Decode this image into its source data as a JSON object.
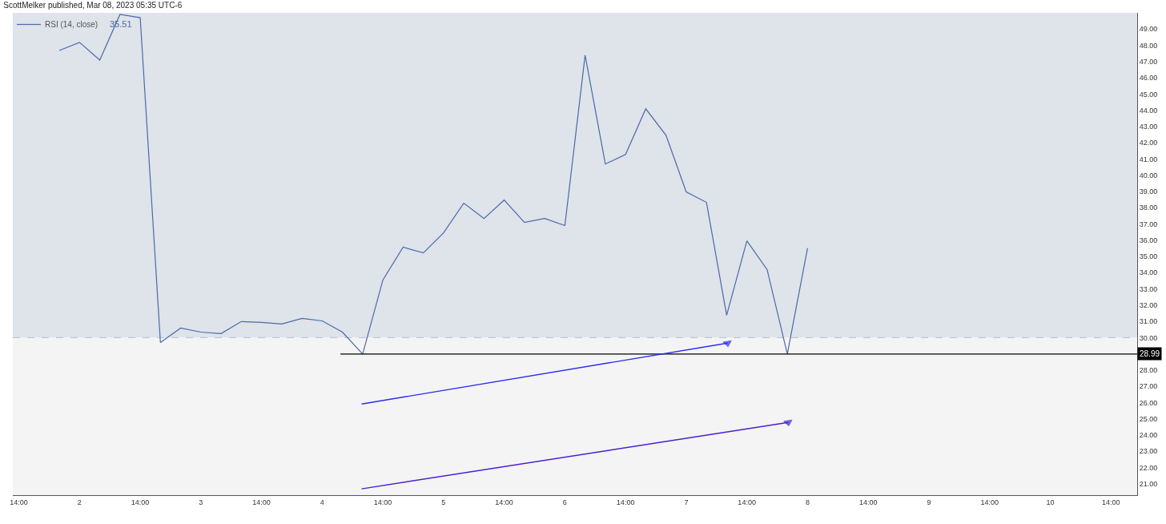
{
  "chart_data": {
    "type": "line",
    "title": "ScottMelker published, Mar 08, 2023 05:35 UTC-6",
    "x": [
      "2023-03-01T22:00",
      "2023-03-02T02:00",
      "2023-03-02T06:00",
      "2023-03-02T10:00",
      "2023-03-02T14:00",
      "2023-03-02T18:00",
      "2023-03-02T22:00",
      "2023-03-03T02:00",
      "2023-03-03T06:00",
      "2023-03-03T10:00",
      "2023-03-03T14:00",
      "2023-03-03T18:00",
      "2023-03-03T22:00",
      "2023-03-04T02:00",
      "2023-03-04T06:00",
      "2023-03-04T10:00",
      "2023-03-04T14:00",
      "2023-03-04T18:00",
      "2023-03-04T22:00",
      "2023-03-05T02:00",
      "2023-03-05T06:00",
      "2023-03-05T10:00",
      "2023-03-05T14:00",
      "2023-03-05T18:00",
      "2023-03-05T22:00",
      "2023-03-06T02:00",
      "2023-03-06T06:00",
      "2023-03-06T10:00",
      "2023-03-06T14:00",
      "2023-03-06T18:00",
      "2023-03-06T22:00",
      "2023-03-07T02:00",
      "2023-03-07T06:00",
      "2023-03-07T10:00",
      "2023-03-07T14:00",
      "2023-03-07T18:00",
      "2023-03-07T22:00",
      "2023-03-08T02:00"
    ],
    "series": [
      {
        "name": "RSI (14, close)",
        "color": "#4a6aa8",
        "values": [
          47.68,
          48.18,
          47.09,
          49.9,
          49.7,
          29.7,
          30.59,
          30.34,
          30.25,
          30.99,
          30.94,
          30.84,
          31.18,
          31.03,
          30.34,
          28.99,
          33.55,
          35.57,
          35.22,
          36.45,
          38.28,
          37.34,
          38.47,
          37.09,
          37.34,
          36.9,
          47.39,
          40.69,
          41.28,
          44.09,
          42.46,
          38.97,
          38.33,
          31.38,
          35.96,
          34.19,
          28.99,
          35.51
        ]
      },
      {
        "type": "line",
        "color": "#000000",
        "x": [
          "2023-03-04T05:36",
          "2023-03-10T19:12"
        ],
        "values": [
          28.99,
          28.99
        ]
      },
      {
        "type": "line",
        "color": "#2b2bf0",
        "marker": "triangle",
        "x": [
          "2023-03-04T09:48",
          "2023-03-07T10:10"
        ],
        "values": [
          25.91,
          29.66
        ]
      },
      {
        "type": "line",
        "color": "#4a1fd0",
        "marker": "triangle",
        "x": [
          "2023-03-04T09:48",
          "2023-03-07T22:10"
        ],
        "values": [
          20.69,
          24.78
        ]
      }
    ],
    "annotations": [
      "35.51",
      {
        "text": "28.99",
        "x": "2023-03-10T19:12",
        "y": 28.99
      }
    ],
    "bands": [
      {
        "axis": "y",
        "from": 30,
        "to": 50,
        "color": "#dfe3ea"
      },
      {
        "axis": "y",
        "from": 20.3,
        "to": 30,
        "color": "#f4f4f4"
      }
    ],
    "ref_lines": [
      {
        "axis": "y",
        "value": 30,
        "color": "#b8bfcc",
        "line_style": "dashed"
      }
    ],
    "xlim": [
      "2023-03-01T12:48",
      "2023-03-10T19:12"
    ],
    "xticks": [
      {
        "value": "2023-03-01T14:00",
        "label": "14:00"
      },
      {
        "value": "2023-03-02T02:00",
        "label": "2"
      },
      {
        "value": "2023-03-02T14:00",
        "label": "14:00"
      },
      {
        "value": "2023-03-03T02:00",
        "label": "3"
      },
      {
        "value": "2023-03-03T14:00",
        "label": "14:00"
      },
      {
        "value": "2023-03-04T02:00",
        "label": "4"
      },
      {
        "value": "2023-03-04T14:00",
        "label": "14:00"
      },
      {
        "value": "2023-03-05T02:00",
        "label": "5"
      },
      {
        "value": "2023-03-05T14:00",
        "label": "14:00"
      },
      {
        "value": "2023-03-06T02:00",
        "label": "6"
      },
      {
        "value": "2023-03-06T14:00",
        "label": "14:00"
      },
      {
        "value": "2023-03-07T02:00",
        "label": "7"
      },
      {
        "value": "2023-03-07T14:00",
        "label": "14:00"
      },
      {
        "value": "2023-03-08T02:00",
        "label": "8"
      },
      {
        "value": "2023-03-08T14:00",
        "label": "14:00"
      },
      {
        "value": "2023-03-09T02:00",
        "label": "9"
      },
      {
        "value": "2023-03-09T14:00",
        "label": "14:00"
      },
      {
        "value": "2023-03-10T02:00",
        "label": "10"
      },
      {
        "value": "2023-03-10T14:00",
        "label": "14:00"
      }
    ],
    "ylim": [
      20.3,
      50.0
    ],
    "yticks": [
      {
        "value": 21,
        "label": "21.00"
      },
      {
        "value": 22,
        "label": "22.00"
      },
      {
        "value": 23,
        "label": "23.00"
      },
      {
        "value": 24,
        "label": "24.00"
      },
      {
        "value": 25,
        "label": "25.00"
      },
      {
        "value": 26,
        "label": "26.00"
      },
      {
        "value": 27,
        "label": "27.00"
      },
      {
        "value": 28,
        "label": "28.00"
      },
      {
        "value": 30,
        "label": "30.00"
      },
      {
        "value": 31,
        "label": "31.00"
      },
      {
        "value": 32,
        "label": "32.00"
      },
      {
        "value": 33,
        "label": "33.00"
      },
      {
        "value": 34,
        "label": "34.00"
      },
      {
        "value": 35,
        "label": "35.00"
      },
      {
        "value": 36,
        "label": "36.00"
      },
      {
        "value": 37,
        "label": "37.00"
      },
      {
        "value": 38,
        "label": "38.00"
      },
      {
        "value": 39,
        "label": "39.00"
      },
      {
        "value": 40,
        "label": "40.00"
      },
      {
        "value": 41,
        "label": "41.00"
      },
      {
        "value": 42,
        "label": "42.00"
      },
      {
        "value": 43,
        "label": "43.00"
      },
      {
        "value": 44,
        "label": "44.00"
      },
      {
        "value": 45,
        "label": "45.00"
      },
      {
        "value": 46,
        "label": "46.00"
      },
      {
        "value": 47,
        "label": "47.00"
      },
      {
        "value": 48,
        "label": "48.00"
      },
      {
        "value": 49,
        "label": "49.00"
      }
    ],
    "legend": "top left"
  }
}
